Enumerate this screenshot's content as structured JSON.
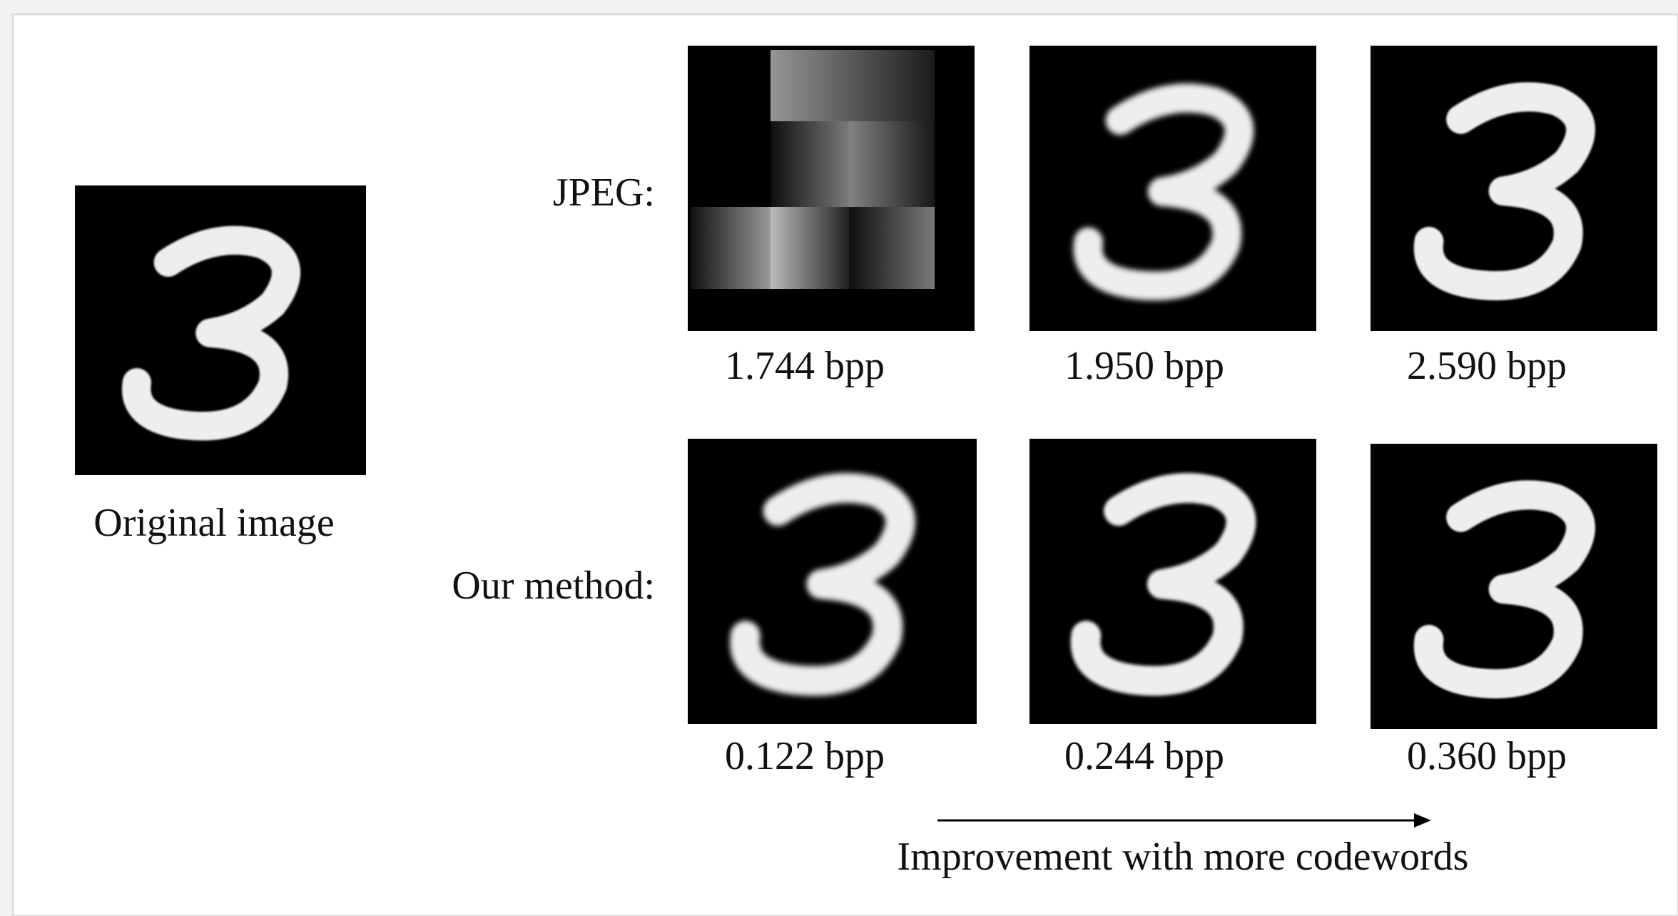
{
  "labels": {
    "jpeg": "JPEG:",
    "ours": "Our method:",
    "original": "Original image"
  },
  "jpeg_rates": [
    "1.744 bpp",
    "1.950 bpp",
    "2.590 bpp"
  ],
  "our_rates": [
    "0.122 bpp",
    "0.244 bpp",
    "0.360 bpp"
  ],
  "arrow_caption": "Improvement with more codewords"
}
